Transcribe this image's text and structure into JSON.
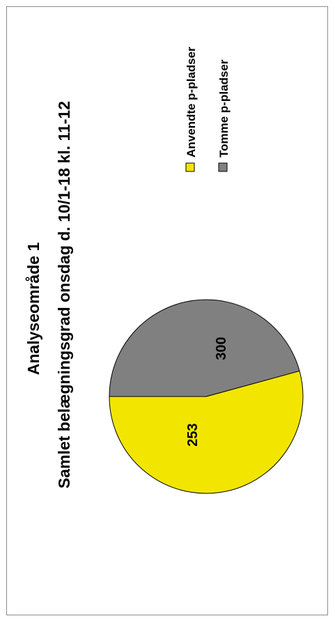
{
  "chart_data": {
    "type": "pie",
    "title": "Analyseområde 1",
    "subtitle": "Samlet belægningsgrad onsdag d. 10/1-18 kl. 11-12",
    "categories": [
      "Anvendte p-pladser",
      "Tomme p-pladser"
    ],
    "values": [
      300,
      253
    ],
    "value_labels": [
      "300",
      "253"
    ],
    "colors": [
      "#f2e600",
      "#808080"
    ],
    "legend_position": "right",
    "orientation": "rotated 90° counter-clockwise"
  }
}
